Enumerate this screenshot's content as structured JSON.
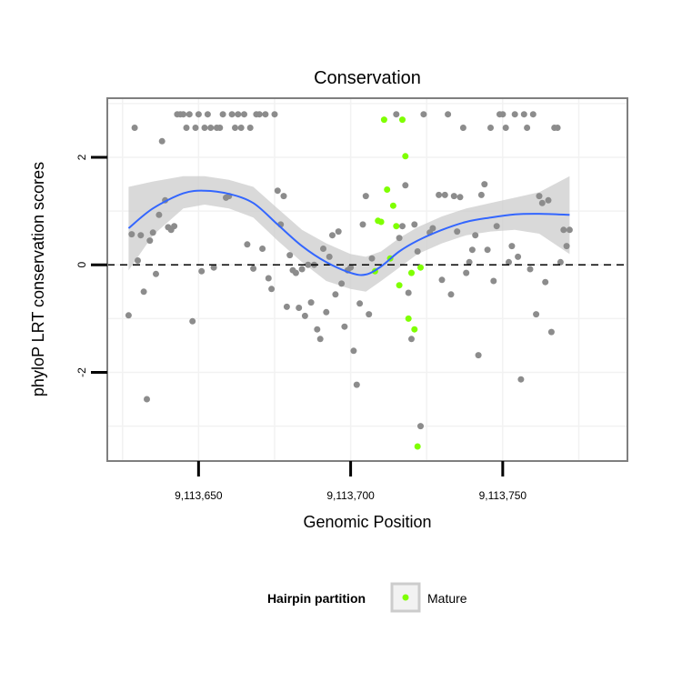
{
  "chart_data": {
    "type": "scatter",
    "title": "Conservation",
    "xlabel": "Genomic Position",
    "ylabel": "phyloP LRT conservation scores",
    "xlim": [
      9113620,
      9113791
    ],
    "ylim": [
      -3.65,
      3.1
    ],
    "x_ticks": [
      9113650,
      9113700,
      9113750
    ],
    "x_tick_labels": [
      "9,113,650",
      "9,113,700",
      "9,113,750"
    ],
    "y_ticks": [
      -2,
      0,
      2
    ],
    "y_tick_labels": [
      "-2",
      "0",
      "2"
    ],
    "grid": true,
    "reference_line": {
      "y": 0,
      "style": "dashed"
    },
    "legend": {
      "title": "Hairpin partition",
      "position": "bottom",
      "entries": [
        {
          "label": "Mature",
          "color": "#7FFF00"
        }
      ]
    },
    "colors": {
      "points": "#8c8c8c",
      "mature": "#7FFF00",
      "smooth": "#3366FF",
      "ribbon": "#cccccc",
      "panel_border": "#7f7f7f"
    },
    "series": [
      {
        "role": "background",
        "points": [
          [
            9113627,
            -0.94
          ],
          [
            9113628,
            0.57
          ],
          [
            9113629,
            2.55
          ],
          [
            9113630,
            0.08
          ],
          [
            9113631,
            0.55
          ],
          [
            9113632,
            -0.5
          ],
          [
            9113633,
            -2.5
          ],
          [
            9113634,
            0.45
          ],
          [
            9113635,
            0.6
          ],
          [
            9113636,
            -0.17
          ],
          [
            9113637,
            0.93
          ],
          [
            9113638,
            2.3
          ],
          [
            9113639,
            1.2
          ],
          [
            9113640,
            0.7
          ],
          [
            9113641,
            0.65
          ],
          [
            9113642,
            0.72
          ],
          [
            9113643,
            2.8
          ],
          [
            9113644,
            2.8
          ],
          [
            9113645,
            2.8
          ],
          [
            9113646,
            2.55
          ],
          [
            9113647,
            2.8
          ],
          [
            9113648,
            -1.05
          ],
          [
            9113649,
            2.55
          ],
          [
            9113650,
            2.8
          ],
          [
            9113651,
            -0.12
          ],
          [
            9113652,
            2.55
          ],
          [
            9113653,
            2.8
          ],
          [
            9113654,
            2.55
          ],
          [
            9113655,
            -0.05
          ],
          [
            9113656,
            2.55
          ],
          [
            9113657,
            2.55
          ],
          [
            9113658,
            2.8
          ],
          [
            9113659,
            1.25
          ],
          [
            9113660,
            1.28
          ],
          [
            9113661,
            2.8
          ],
          [
            9113662,
            2.55
          ],
          [
            9113663,
            2.8
          ],
          [
            9113664,
            2.55
          ],
          [
            9113665,
            2.8
          ],
          [
            9113666,
            0.38
          ],
          [
            9113667,
            2.55
          ],
          [
            9113668,
            -0.07
          ],
          [
            9113669,
            2.8
          ],
          [
            9113670,
            2.8
          ],
          [
            9113671,
            0.3
          ],
          [
            9113672,
            2.8
          ],
          [
            9113673,
            -0.25
          ],
          [
            9113674,
            -0.45
          ],
          [
            9113675,
            2.8
          ],
          [
            9113676,
            1.38
          ],
          [
            9113677,
            0.75
          ],
          [
            9113678,
            1.28
          ],
          [
            9113679,
            -0.78
          ],
          [
            9113680,
            0.18
          ],
          [
            9113681,
            -0.1
          ],
          [
            9113682,
            -0.15
          ],
          [
            9113683,
            -0.8
          ],
          [
            9113684,
            -0.08
          ],
          [
            9113685,
            -0.95
          ],
          [
            9113686,
            0.0
          ],
          [
            9113687,
            -0.7
          ],
          [
            9113688,
            0.0
          ],
          [
            9113689,
            -1.2
          ],
          [
            9113690,
            -1.38
          ],
          [
            9113691,
            0.3
          ],
          [
            9113692,
            -0.88
          ],
          [
            9113693,
            0.15
          ],
          [
            9113694,
            0.55
          ],
          [
            9113695,
            -0.55
          ],
          [
            9113696,
            0.62
          ],
          [
            9113697,
            -0.35
          ],
          [
            9113698,
            -1.15
          ],
          [
            9113699,
            -0.1
          ],
          [
            9113700,
            -0.05
          ],
          [
            9113701,
            -1.6
          ],
          [
            9113702,
            -2.23
          ],
          [
            9113703,
            -0.72
          ],
          [
            9113704,
            0.75
          ],
          [
            9113705,
            1.28
          ],
          [
            9113706,
            -0.92
          ],
          [
            9113707,
            0.12
          ],
          [
            9113715,
            2.8
          ],
          [
            9113716,
            0.5
          ],
          [
            9113717,
            0.72
          ],
          [
            9113718,
            1.48
          ],
          [
            9113719,
            -0.52
          ],
          [
            9113720,
            -1.38
          ],
          [
            9113721,
            0.75
          ],
          [
            9113722,
            0.25
          ],
          [
            9113723,
            -3.0
          ],
          [
            9113724,
            2.8
          ],
          [
            9113726,
            0.6
          ],
          [
            9113727,
            0.68
          ],
          [
            9113729,
            1.3
          ],
          [
            9113730,
            -0.28
          ],
          [
            9113731,
            1.3
          ],
          [
            9113732,
            2.8
          ],
          [
            9113733,
            -0.55
          ],
          [
            9113734,
            1.28
          ],
          [
            9113735,
            0.62
          ],
          [
            9113736,
            1.26
          ],
          [
            9113737,
            2.55
          ],
          [
            9113738,
            -0.15
          ],
          [
            9113739,
            0.05
          ],
          [
            9113740,
            0.28
          ],
          [
            9113741,
            0.55
          ],
          [
            9113742,
            -1.68
          ],
          [
            9113743,
            1.3
          ],
          [
            9113744,
            1.5
          ],
          [
            9113745,
            0.28
          ],
          [
            9113746,
            2.55
          ],
          [
            9113747,
            -0.3
          ],
          [
            9113748,
            0.72
          ],
          [
            9113749,
            2.8
          ],
          [
            9113750,
            2.8
          ],
          [
            9113751,
            2.55
          ],
          [
            9113752,
            0.05
          ],
          [
            9113753,
            0.35
          ],
          [
            9113754,
            2.8
          ],
          [
            9113755,
            0.15
          ],
          [
            9113756,
            -2.13
          ],
          [
            9113757,
            2.8
          ],
          [
            9113758,
            2.55
          ],
          [
            9113759,
            -0.08
          ],
          [
            9113760,
            2.8
          ],
          [
            9113761,
            -0.92
          ],
          [
            9113762,
            1.28
          ],
          [
            9113763,
            1.15
          ],
          [
            9113764,
            -0.32
          ],
          [
            9113765,
            1.2
          ],
          [
            9113766,
            -1.25
          ],
          [
            9113767,
            2.55
          ],
          [
            9113768,
            2.55
          ],
          [
            9113769,
            0.05
          ],
          [
            9113770,
            0.65
          ],
          [
            9113771,
            0.35
          ],
          [
            9113772,
            0.65
          ]
        ]
      },
      {
        "name": "Mature",
        "points": [
          [
            9113708,
            -0.12
          ],
          [
            9113709,
            0.82
          ],
          [
            9113710,
            0.8
          ],
          [
            9113711,
            2.7
          ],
          [
            9113712,
            1.4
          ],
          [
            9113713,
            0.12
          ],
          [
            9113714,
            1.1
          ],
          [
            9113715,
            0.72
          ],
          [
            9113716,
            -0.38
          ],
          [
            9113717,
            2.7
          ],
          [
            9113718,
            2.02
          ],
          [
            9113719,
            -1.0
          ],
          [
            9113720,
            -0.15
          ],
          [
            9113721,
            -1.2
          ],
          [
            9113722,
            -3.38
          ],
          [
            9113723,
            -0.05
          ]
        ]
      }
    ],
    "smooth": {
      "x": [
        9113627,
        9113635,
        9113645,
        9113652,
        9113660,
        9113668,
        9113676,
        9113684,
        9113692,
        9113700,
        9113705,
        9113710,
        9113716,
        9113722,
        9113730,
        9113738,
        9113746,
        9113754,
        9113762,
        9113772
      ],
      "y": [
        0.68,
        1.05,
        1.33,
        1.38,
        1.32,
        1.15,
        0.75,
        0.35,
        0.05,
        -0.15,
        -0.18,
        -0.03,
        0.25,
        0.45,
        0.65,
        0.8,
        0.88,
        0.94,
        0.95,
        0.93
      ],
      "upper": [
        1.45,
        1.55,
        1.65,
        1.65,
        1.58,
        1.45,
        1.05,
        0.65,
        0.4,
        0.2,
        0.15,
        0.25,
        0.5,
        0.7,
        0.9,
        1.05,
        1.15,
        1.25,
        1.35,
        1.65
      ],
      "lower": [
        -0.1,
        0.55,
        1.05,
        1.12,
        1.05,
        0.88,
        0.45,
        0.05,
        -0.3,
        -0.45,
        -0.5,
        -0.3,
        -0.05,
        0.2,
        0.4,
        0.55,
        0.62,
        0.65,
        0.58,
        0.2
      ]
    }
  }
}
